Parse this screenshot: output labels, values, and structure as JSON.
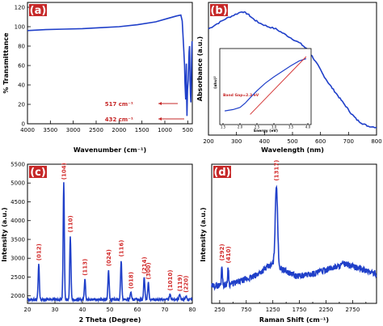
{
  "chart_data": [
    {
      "type": "line",
      "panel": "(a)",
      "xlabel": "Wavenumber (cm⁻¹)",
      "ylabel": "% Transmittance",
      "xlim": [
        4000,
        400
      ],
      "ylim": [
        0,
        125
      ],
      "x_ticks": [
        4000,
        3500,
        3000,
        2500,
        2000,
        1500,
        1000,
        500
      ],
      "y_ticks": [
        0,
        20,
        40,
        60,
        80,
        100,
        120
      ],
      "series": [
        {
          "color": "#1f3fc9",
          "points": [
            [
              4000,
              96
            ],
            [
              3600,
              97
            ],
            [
              3200,
              97.5
            ],
            [
              2800,
              98
            ],
            [
              2400,
              99
            ],
            [
              2000,
              100
            ],
            [
              1600,
              102
            ],
            [
              1200,
              105
            ],
            [
              900,
              109
            ],
            [
              750,
              111
            ],
            [
              650,
              112
            ],
            [
              620,
              106
            ],
            [
              590,
              80
            ],
            [
              570,
              60
            ],
            [
              560,
              42
            ],
            [
              545,
              25
            ],
            [
              530,
              62
            ],
            [
              525,
              30
            ],
            [
              517,
              8
            ],
            [
              505,
              35
            ],
            [
              490,
              45
            ],
            [
              480,
              60
            ],
            [
              470,
              74
            ],
            [
              460,
              80
            ],
            [
              450,
              45
            ],
            [
              440,
              30
            ],
            [
              432,
              22
            ],
            [
              425,
              40
            ],
            [
              415,
              70
            ],
            [
              405,
              85
            ]
          ]
        }
      ],
      "annotations": [
        "517 cm⁻¹",
        "432 cm⁻¹"
      ]
    },
    {
      "type": "line",
      "panel": "(b)",
      "xlabel": "Wavelength (nm)",
      "ylabel": "Absorbance (a.u.)",
      "xlim": [
        200,
        800
      ],
      "x_ticks": [
        200,
        300,
        400,
        500,
        600,
        700,
        800
      ],
      "series": [
        {
          "color": "#1f3fc9",
          "points": [
            [
              200,
              0.82
            ],
            [
              230,
              0.86
            ],
            [
              260,
              0.9
            ],
            [
              290,
              0.93
            ],
            [
              320,
              0.96
            ],
            [
              340,
              0.94
            ],
            [
              360,
              0.9
            ],
            [
              380,
              0.87
            ],
            [
              410,
              0.84
            ],
            [
              440,
              0.82
            ],
            [
              470,
              0.78
            ],
            [
              500,
              0.74
            ],
            [
              530,
              0.7
            ],
            [
              550,
              0.66
            ],
            [
              570,
              0.6
            ],
            [
              590,
              0.53
            ],
            [
              610,
              0.45
            ],
            [
              630,
              0.38
            ],
            [
              650,
              0.32
            ],
            [
              670,
              0.26
            ],
            [
              690,
              0.2
            ],
            [
              710,
              0.14
            ],
            [
              730,
              0.09
            ],
            [
              750,
              0.06
            ],
            [
              770,
              0.04
            ],
            [
              800,
              0.03
            ]
          ]
        }
      ],
      "inset": {
        "type": "line",
        "xlabel": "Energy (eV)",
        "ylabel": "(αhν)²",
        "xlim": [
          1.5,
          4.0
        ],
        "x_ticks": [
          1.5,
          2.0,
          2.5,
          3.0,
          3.5,
          4.0
        ],
        "note": "Band Gap=2.3 eV",
        "curve": [
          [
            1.55,
            0.15
          ],
          [
            1.8,
            0.17
          ],
          [
            2.0,
            0.2
          ],
          [
            2.15,
            0.26
          ],
          [
            2.3,
            0.34
          ],
          [
            2.5,
            0.44
          ],
          [
            2.75,
            0.55
          ],
          [
            3.0,
            0.64
          ],
          [
            3.25,
            0.72
          ],
          [
            3.5,
            0.8
          ],
          [
            3.75,
            0.87
          ],
          [
            3.95,
            0.9
          ]
        ],
        "fit": [
          [
            2.3,
            0.1
          ],
          [
            3.95,
            0.93
          ]
        ]
      }
    },
    {
      "type": "line",
      "panel": "(c)",
      "xlabel": "2 Theta (Degree)",
      "ylabel": "Intensity (a.u.)",
      "xlim": [
        20,
        80
      ],
      "ylim": [
        1800,
        5500
      ],
      "x_ticks": [
        20,
        30,
        40,
        50,
        60,
        70,
        80
      ],
      "y_ticks": [
        2000,
        2500,
        3000,
        3500,
        4000,
        4500,
        5000,
        5500
      ],
      "baseline": 1900,
      "peaks": [
        {
          "x": 24.1,
          "y": 2850,
          "label": "(012)"
        },
        {
          "x": 33.2,
          "y": 5000,
          "label": "(104)"
        },
        {
          "x": 35.6,
          "y": 3600,
          "label": "(110)"
        },
        {
          "x": 40.9,
          "y": 2450,
          "label": "(113)"
        },
        {
          "x": 49.5,
          "y": 2700,
          "label": "(024)"
        },
        {
          "x": 54.1,
          "y": 2950,
          "label": "(116)"
        },
        {
          "x": 57.6,
          "y": 2100,
          "label": "(018)"
        },
        {
          "x": 62.5,
          "y": 2500,
          "label": "(214)"
        },
        {
          "x": 64.0,
          "y": 2350,
          "label": "(300)"
        },
        {
          "x": 71.9,
          "y": 2050,
          "label": "(1010)"
        },
        {
          "x": 75.4,
          "y": 2030,
          "label": "(119)"
        },
        {
          "x": 77.7,
          "y": 2000,
          "label": "(220)"
        }
      ]
    },
    {
      "type": "line",
      "panel": "(d)",
      "xlabel": "Raman Shift (cm⁻¹)",
      "ylabel": "Intensity (a.u.)",
      "xlim": [
        100,
        3200
      ],
      "x_ticks": [
        250,
        500,
        750,
        1000,
        1250,
        1500,
        1750,
        2000,
        2250,
        2500,
        2750,
        3000
      ],
      "peaks": [
        {
          "x": 292,
          "y": 0.3,
          "label": "(292)"
        },
        {
          "x": 410,
          "y": 0.28,
          "label": "(410)"
        },
        {
          "x": 1317,
          "y": 0.95,
          "label": "(1317)"
        }
      ],
      "background": [
        [
          100,
          0.12
        ],
        [
          500,
          0.14
        ],
        [
          900,
          0.2
        ],
        [
          1100,
          0.26
        ],
        [
          1250,
          0.3
        ],
        [
          1500,
          0.24
        ],
        [
          1700,
          0.2
        ],
        [
          2000,
          0.22
        ],
        [
          2300,
          0.26
        ],
        [
          2600,
          0.3
        ],
        [
          2900,
          0.26
        ],
        [
          3200,
          0.22
        ]
      ]
    }
  ]
}
